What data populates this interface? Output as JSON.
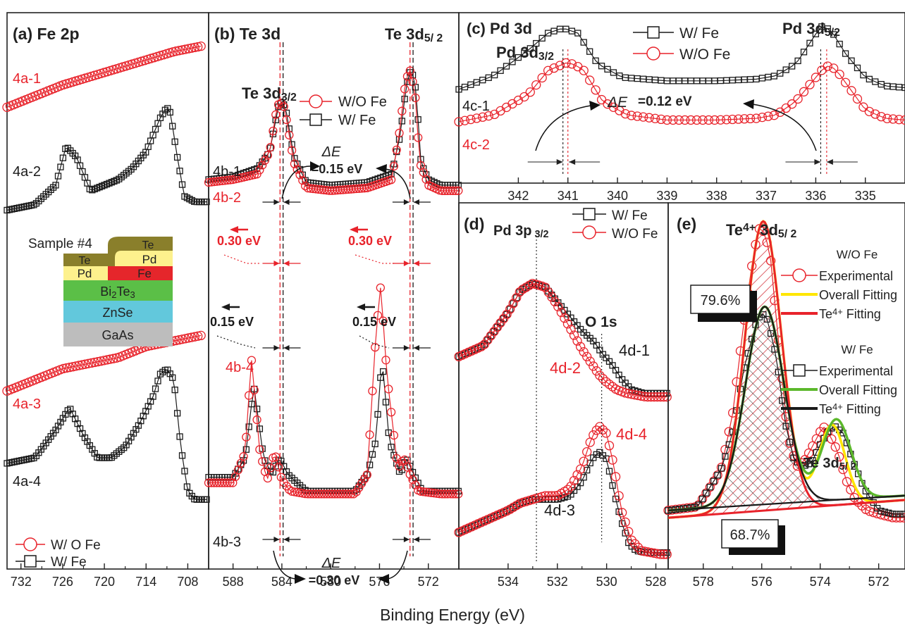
{
  "colors": {
    "red": "#e8232b",
    "black": "#1a1a1a",
    "yellow": "#ffe600",
    "green": "#5cb82c"
  },
  "xlabel": "Binding Energy (eV)",
  "sample": {
    "title": "Sample #4",
    "layers": [
      {
        "name": "Te",
        "color": "#8a7f2b"
      },
      {
        "name": "Pd",
        "color": "#fdf18d"
      },
      {
        "name": "Fe",
        "color": "#e5262b"
      },
      {
        "name": "Bi2Te3",
        "color": "#5bbf47"
      },
      {
        "name": "ZnSe",
        "color": "#62c8dc"
      },
      {
        "name": "GaAs",
        "color": "#bdbdbd"
      }
    ]
  },
  "chart_data": [
    {
      "id": "a",
      "type": "line",
      "title": "(a) Fe 2p",
      "xlim": [
        734,
        705
      ],
      "xticks": [
        732,
        726,
        720,
        714,
        708
      ],
      "series": [
        {
          "name": "4a-1",
          "color": "red",
          "marker": "circle",
          "x": [
            734,
            730,
            726,
            722,
            718,
            714,
            710,
            706
          ],
          "y": [
            0.17,
            0.15,
            0.13,
            0.115,
            0.1,
            0.085,
            0.07,
            0.06
          ]
        },
        {
          "name": "4a-2",
          "color": "black",
          "marker": "square",
          "x": [
            734,
            730,
            727,
            725.5,
            724,
            722,
            720,
            718,
            716,
            714,
            712,
            711,
            710.5,
            709.5,
            708.5,
            707,
            706,
            705
          ],
          "y": [
            0.355,
            0.345,
            0.31,
            0.24,
            0.26,
            0.32,
            0.31,
            0.3,
            0.28,
            0.25,
            0.19,
            0.17,
            0.18,
            0.26,
            0.33,
            0.34,
            0.34,
            0.34
          ]
        },
        {
          "name": "4a-3",
          "color": "red",
          "marker": "circle",
          "x": [
            734,
            730,
            726,
            722,
            718,
            714,
            710,
            706
          ],
          "y": [
            0.68,
            0.66,
            0.64,
            0.63,
            0.62,
            0.6,
            0.59,
            0.58
          ]
        },
        {
          "name": "4a-4",
          "color": "black",
          "marker": "square",
          "x": [
            734,
            730,
            727,
            725,
            723,
            721,
            719,
            717,
            715,
            713,
            712,
            711,
            710,
            709,
            708,
            707,
            706,
            705
          ],
          "y": [
            0.81,
            0.8,
            0.75,
            0.71,
            0.76,
            0.8,
            0.8,
            0.78,
            0.74,
            0.69,
            0.65,
            0.64,
            0.66,
            0.78,
            0.86,
            0.875,
            0.875,
            0.875
          ]
        }
      ],
      "legend": [
        {
          "label": "W/ O Fe",
          "color": "red",
          "marker": "circle"
        },
        {
          "label": "W/ Fe",
          "color": "black",
          "marker": "square"
        }
      ]
    },
    {
      "id": "b",
      "type": "line",
      "title": "(b) Te 3d",
      "xlim": [
        590,
        569.5
      ],
      "xticks": [
        588,
        584,
        580,
        576,
        572
      ],
      "series": [
        {
          "name": "4b-1",
          "color": "black",
          "marker": "square",
          "x": [
            590,
            588,
            586,
            585,
            584.3,
            584.0,
            583.7,
            583,
            582,
            580,
            577,
            575,
            574.3,
            573.8,
            573.4,
            573.0,
            572.6,
            572,
            571,
            570,
            569.5
          ],
          "y": [
            0.3,
            0.295,
            0.28,
            0.25,
            0.17,
            0.16,
            0.17,
            0.26,
            0.305,
            0.31,
            0.305,
            0.29,
            0.22,
            0.13,
            0.1,
            0.14,
            0.27,
            0.3,
            0.31,
            0.31,
            0.31
          ]
        },
        {
          "name": "4b-2",
          "color": "red",
          "marker": "circle",
          "x": [
            590,
            588,
            586,
            585,
            584.4,
            584.15,
            583.8,
            583,
            582,
            580,
            577,
            575,
            574.4,
            573.9,
            573.55,
            573.1,
            572.7,
            572,
            571,
            570,
            569.5
          ],
          "y": [
            0.305,
            0.3,
            0.29,
            0.25,
            0.17,
            0.16,
            0.17,
            0.27,
            0.315,
            0.32,
            0.315,
            0.3,
            0.22,
            0.13,
            0.1,
            0.14,
            0.27,
            0.31,
            0.32,
            0.32,
            0.32
          ]
        },
        {
          "name": "4b-3",
          "color": "black",
          "marker": "square",
          "x": [
            590,
            588,
            587,
            586.3,
            585.5,
            584.8,
            584.2,
            583.5,
            582,
            580,
            578,
            577,
            576.3,
            575.8,
            575.2,
            574.3,
            573.8,
            573.2,
            572.5,
            571,
            570,
            569.5
          ],
          "y": [
            0.835,
            0.835,
            0.8,
            0.67,
            0.8,
            0.83,
            0.8,
            0.83,
            0.86,
            0.86,
            0.86,
            0.83,
            0.77,
            0.62,
            0.77,
            0.83,
            0.8,
            0.83,
            0.86,
            0.86,
            0.86,
            0.86
          ]
        },
        {
          "name": "4b-4",
          "color": "red",
          "marker": "circle",
          "x": [
            590,
            588,
            587,
            586.5,
            585.8,
            585.2,
            584.6,
            584.0,
            583.3,
            582,
            580,
            578,
            577,
            576.3,
            575.9,
            575.4,
            574.5,
            574.0,
            573.5,
            572.8,
            571,
            570,
            569.5
          ],
          "y": [
            0.845,
            0.845,
            0.79,
            0.62,
            0.79,
            0.84,
            0.79,
            0.84,
            0.86,
            0.865,
            0.865,
            0.865,
            0.83,
            0.58,
            0.49,
            0.65,
            0.82,
            0.8,
            0.83,
            0.86,
            0.865,
            0.865,
            0.865
          ]
        }
      ],
      "legend": [
        {
          "label": "W/O Fe",
          "color": "red",
          "marker": "circle"
        },
        {
          "label": "W/ Fe",
          "color": "black",
          "marker": "square"
        }
      ],
      "peak_labels": [
        "Te 3d3/2",
        "Te 3d5/ 2"
      ],
      "annotations": [
        {
          "text": "ΔE",
          "sub": "=0.15 eV"
        },
        {
          "text": "ΔE",
          "sub": "=0.30 eV"
        },
        {
          "text": "0.30 eV"
        },
        {
          "text": "0.30 eV"
        },
        {
          "text": "0.15 eV"
        },
        {
          "text": "0.15 eV"
        }
      ]
    },
    {
      "id": "c",
      "type": "line",
      "title": "(c) Pd 3d",
      "xlim": [
        343.2,
        334.2
      ],
      "xticks": [
        342,
        341,
        340,
        339,
        338,
        337,
        336,
        335
      ],
      "series": [
        {
          "name": "4c-1",
          "color": "black",
          "marker": "square",
          "x": [
            343.2,
            342.5,
            341.8,
            341.4,
            341.1,
            340.8,
            340.4,
            339.9,
            339,
            338,
            337.2,
            336.8,
            336.4,
            336.1,
            335.9,
            335.7,
            335.4,
            335.0,
            334.6,
            334.2
          ],
          "y": [
            0.45,
            0.37,
            0.22,
            0.12,
            0.09,
            0.12,
            0.3,
            0.38,
            0.4,
            0.4,
            0.39,
            0.37,
            0.3,
            0.17,
            0.08,
            0.1,
            0.24,
            0.38,
            0.43,
            0.44
          ]
        },
        {
          "name": "4c-2",
          "color": "red",
          "marker": "circle",
          "x": [
            343.2,
            342.5,
            341.8,
            341.4,
            341.0,
            340.7,
            340.3,
            339.8,
            339,
            338,
            337.2,
            336.8,
            336.4,
            336.0,
            335.8,
            335.6,
            335.3,
            335.0,
            334.6,
            334.2
          ],
          "y": [
            0.64,
            0.6,
            0.48,
            0.34,
            0.29,
            0.33,
            0.52,
            0.6,
            0.63,
            0.63,
            0.62,
            0.6,
            0.52,
            0.38,
            0.31,
            0.33,
            0.45,
            0.57,
            0.62,
            0.63
          ]
        }
      ],
      "legend": [
        {
          "label": "W/ Fe",
          "color": "black",
          "marker": "square"
        },
        {
          "label": "W/O Fe",
          "color": "red",
          "marker": "circle"
        }
      ],
      "peak_labels": [
        "Pd 3d3/2",
        "Pd 3d5/2"
      ],
      "annotations": [
        {
          "text": "ΔE",
          "sub": "=0.12 eV"
        }
      ]
    },
    {
      "id": "d",
      "type": "line",
      "title": "(d)",
      "xlim": [
        536,
        527.5
      ],
      "xticks": [
        534,
        532,
        530,
        528
      ],
      "series": [
        {
          "name": "4d-1",
          "color": "black",
          "marker": "square",
          "x": [
            536,
            535,
            534,
            533.5,
            533,
            532.5,
            532,
            531.5,
            531,
            530.5,
            530.2,
            529.8,
            529.4,
            529,
            528.5,
            528,
            527.5
          ],
          "y": [
            0.42,
            0.39,
            0.3,
            0.24,
            0.22,
            0.23,
            0.27,
            0.31,
            0.35,
            0.38,
            0.41,
            0.44,
            0.48,
            0.51,
            0.52,
            0.52,
            0.52
          ]
        },
        {
          "name": "4d-2",
          "color": "red",
          "marker": "circle",
          "x": [
            536,
            535,
            534,
            533.5,
            533,
            532.5,
            532,
            531.5,
            531,
            530.6,
            530.3,
            530.0,
            529.6,
            529.2,
            528.8,
            528.4,
            528,
            527.5
          ],
          "y": [
            0.42,
            0.39,
            0.3,
            0.24,
            0.22,
            0.23,
            0.28,
            0.34,
            0.4,
            0.44,
            0.47,
            0.49,
            0.51,
            0.52,
            0.525,
            0.53,
            0.53,
            0.53
          ]
        },
        {
          "name": "4d-3",
          "color": "black",
          "marker": "square",
          "x": [
            536,
            535,
            534,
            533.5,
            533,
            532.5,
            532,
            531.5,
            531,
            530.6,
            530.3,
            530.0,
            529.7,
            529.4,
            529.1,
            528.8,
            528.4,
            528,
            527.5
          ],
          "y": [
            0.9,
            0.87,
            0.84,
            0.82,
            0.81,
            0.81,
            0.81,
            0.8,
            0.76,
            0.7,
            0.68,
            0.7,
            0.79,
            0.87,
            0.93,
            0.95,
            0.955,
            0.955,
            0.955
          ]
        },
        {
          "name": "4d-4",
          "color": "red",
          "marker": "circle",
          "x": [
            536,
            535,
            534,
            533.5,
            533,
            532.5,
            532,
            531.5,
            531,
            530.6,
            530.3,
            530.0,
            529.7,
            529.4,
            529.0,
            528.6,
            528.2,
            527.8,
            527.5
          ],
          "y": [
            0.9,
            0.87,
            0.84,
            0.82,
            0.81,
            0.8,
            0.8,
            0.78,
            0.72,
            0.64,
            0.61,
            0.63,
            0.72,
            0.84,
            0.92,
            0.95,
            0.955,
            0.96,
            0.96
          ]
        }
      ],
      "legend": [
        {
          "label": "W/ Fe",
          "color": "black",
          "marker": "square"
        },
        {
          "label": "W/O Fe",
          "color": "red",
          "marker": "circle"
        }
      ],
      "peak_labels": [
        "Pd 3p 3/2",
        "O 1s"
      ]
    },
    {
      "id": "e",
      "type": "line",
      "title": "(e)",
      "xlim": [
        579.2,
        571.1
      ],
      "xticks": [
        578,
        576,
        574,
        572
      ],
      "series": [
        {
          "name": "W/O Fe Experimental",
          "color": "red",
          "marker": "circle",
          "x": [
            579.2,
            578.2,
            577.4,
            577,
            576.6,
            576.3,
            576.1,
            575.9,
            575.7,
            575.4,
            575.1,
            574.8,
            574.5,
            574.1,
            573.9,
            573.7,
            573.4,
            573.1,
            572.8,
            572.4,
            572.0,
            571.5,
            571.1
          ],
          "y": [
            0.84,
            0.83,
            0.73,
            0.58,
            0.32,
            0.15,
            0.07,
            0.08,
            0.15,
            0.4,
            0.64,
            0.72,
            0.7,
            0.64,
            0.61,
            0.63,
            0.68,
            0.76,
            0.81,
            0.84,
            0.85,
            0.86,
            0.86
          ]
        },
        {
          "name": "W/ Fe Experimental",
          "color": "black",
          "marker": "square",
          "x": [
            579.2,
            578.2,
            577.4,
            577,
            576.6,
            576.2,
            576.0,
            575.8,
            575.5,
            575.2,
            574.9,
            574.6,
            574.3,
            574.0,
            573.7,
            573.5,
            573.2,
            572.9,
            572.5,
            572.0,
            571.5,
            571.1
          ],
          "y": [
            0.84,
            0.83,
            0.73,
            0.63,
            0.45,
            0.33,
            0.3,
            0.32,
            0.42,
            0.6,
            0.7,
            0.72,
            0.71,
            0.66,
            0.62,
            0.61,
            0.63,
            0.7,
            0.78,
            0.84,
            0.85,
            0.85
          ]
        }
      ],
      "legend_groups": [
        {
          "title": "W/O Fe",
          "items": [
            {
              "label": "Experimental",
              "kind": "marker",
              "color": "red"
            },
            {
              "label": "Overall Fitting",
              "kind": "line",
              "color": "yellow"
            },
            {
              "label": "Te4+ Fitting",
              "kind": "line",
              "color": "red"
            }
          ]
        },
        {
          "title": "W/ Fe",
          "items": [
            {
              "label": "Experimental",
              "kind": "marker",
              "color": "black"
            },
            {
              "label": "Overall Fitting",
              "kind": "line",
              "color": "green"
            },
            {
              "label": "Te4+ Fitting",
              "kind": "line",
              "color": "black"
            }
          ]
        }
      ],
      "peak_labels": [
        "Te4+ 3d5/ 2",
        "Te 3d5/ 2"
      ],
      "annotations": [
        {
          "text": "79.6%"
        },
        {
          "text": "68.7%"
        }
      ]
    }
  ]
}
